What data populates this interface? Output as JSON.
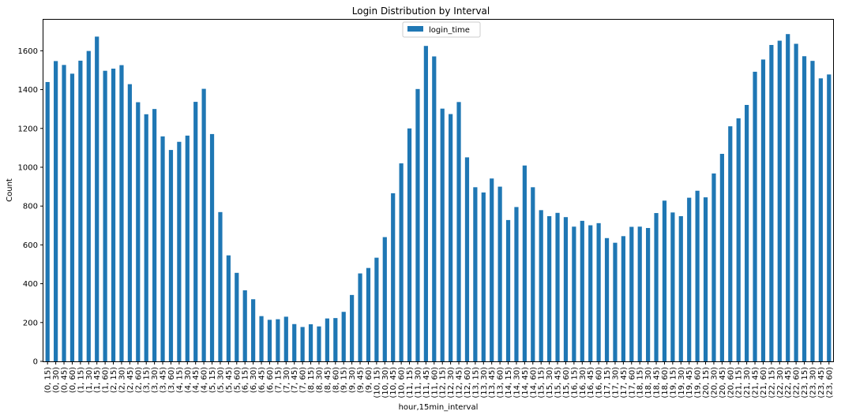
{
  "chart_data": {
    "type": "bar",
    "title": "Login Distribution by Interval",
    "xlabel": "hour,15min_interval",
    "ylabel": "Count",
    "ylim": [
      0,
      1760
    ],
    "yticks": [
      0,
      200,
      400,
      600,
      800,
      1000,
      1200,
      1400,
      1600
    ],
    "grid": false,
    "legend_position": "top-center",
    "color": "#1f77b4",
    "series": [
      {
        "name": "login_time",
        "values": [
          1439,
          1547,
          1527,
          1482,
          1549,
          1599,
          1673,
          1497,
          1508,
          1526,
          1428,
          1335,
          1273,
          1300,
          1159,
          1089,
          1131,
          1163,
          1337,
          1404,
          1171,
          769,
          546,
          456,
          366,
          320,
          233,
          214,
          217,
          230,
          192,
          177,
          191,
          180,
          221,
          223,
          255,
          342,
          453,
          481,
          534,
          640,
          866,
          1020,
          1200,
          1403,
          1625,
          1571,
          1302,
          1274,
          1336,
          1051,
          897,
          870,
          942,
          900,
          728,
          795,
          1009,
          897,
          779,
          748,
          765,
          743,
          694,
          724,
          701,
          712,
          635,
          611,
          645,
          693,
          694,
          687,
          764,
          828,
          767,
          748,
          843,
          879,
          845,
          968,
          1069,
          1211,
          1252,
          1321,
          1492,
          1555,
          1630,
          1652,
          1686,
          1636,
          1572,
          1548,
          1458,
          1478
        ]
      }
    ],
    "categories": [
      "(0, 15)",
      "(0, 30)",
      "(0, 45)",
      "(0, 60)",
      "(1, 15)",
      "(1, 30)",
      "(1, 45)",
      "(1, 60)",
      "(2, 15)",
      "(2, 30)",
      "(2, 45)",
      "(2, 60)",
      "(3, 15)",
      "(3, 30)",
      "(3, 45)",
      "(3, 60)",
      "(4, 15)",
      "(4, 30)",
      "(4, 45)",
      "(4, 60)",
      "(5, 15)",
      "(5, 30)",
      "(5, 45)",
      "(5, 60)",
      "(6, 15)",
      "(6, 30)",
      "(6, 45)",
      "(6, 60)",
      "(7, 15)",
      "(7, 30)",
      "(7, 45)",
      "(7, 60)",
      "(8, 15)",
      "(8, 30)",
      "(8, 45)",
      "(8, 60)",
      "(9, 15)",
      "(9, 30)",
      "(9, 45)",
      "(9, 60)",
      "(10, 15)",
      "(10, 30)",
      "(10, 45)",
      "(10, 60)",
      "(11, 15)",
      "(11, 30)",
      "(11, 45)",
      "(11, 60)",
      "(12, 15)",
      "(12, 30)",
      "(12, 45)",
      "(12, 60)",
      "(13, 15)",
      "(13, 30)",
      "(13, 45)",
      "(13, 60)",
      "(14, 15)",
      "(14, 30)",
      "(14, 45)",
      "(14, 60)",
      "(15, 15)",
      "(15, 30)",
      "(15, 45)",
      "(15, 60)",
      "(16, 15)",
      "(16, 30)",
      "(16, 45)",
      "(16, 60)",
      "(17, 15)",
      "(17, 30)",
      "(17, 45)",
      "(17, 60)",
      "(18, 15)",
      "(18, 30)",
      "(18, 45)",
      "(18, 60)",
      "(19, 15)",
      "(19, 30)",
      "(19, 45)",
      "(19, 60)",
      "(20, 15)",
      "(20, 30)",
      "(20, 45)",
      "(20, 60)",
      "(21, 15)",
      "(21, 30)",
      "(21, 45)",
      "(21, 60)",
      "(22, 15)",
      "(22, 30)",
      "(22, 45)",
      "(22, 60)",
      "(23, 15)",
      "(23, 30)",
      "(23, 45)",
      "(23, 60)"
    ]
  }
}
